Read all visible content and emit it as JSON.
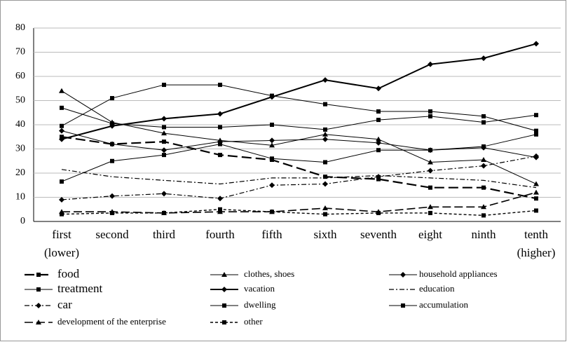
{
  "chart_data": {
    "type": "line",
    "categories": [
      "first\n(lower)",
      "second",
      "third",
      "fourth",
      "fifth",
      "sixth",
      "seventh",
      "eight",
      "ninth",
      "tenth\n(higher)"
    ],
    "ylim": [
      0,
      80
    ],
    "yticks": [
      0,
      10,
      20,
      30,
      40,
      50,
      60,
      70,
      80
    ],
    "grid": true,
    "series": [
      {
        "name": "food",
        "color": "#000000",
        "marker": "square",
        "style": "longdash-thick",
        "values": [
          35,
          32,
          33,
          27.5,
          25.5,
          18.5,
          17.5,
          14,
          14,
          9.5
        ]
      },
      {
        "name": "clothes, shoes",
        "color": "#000000",
        "marker": "triangle",
        "style": "solid",
        "values": [
          54,
          41,
          36.5,
          33.5,
          31.5,
          36,
          34,
          24.5,
          25.5,
          15.5
        ]
      },
      {
        "name": "household appliances",
        "color": "#000000",
        "marker": "diamond",
        "style": "solid",
        "values": [
          37.5,
          32,
          29.5,
          33,
          33.5,
          34,
          32.5,
          29.5,
          30.5,
          26.5
        ]
      },
      {
        "name": "treatment",
        "color": "#000000",
        "marker": "square",
        "style": "solid",
        "values": [
          47,
          40.5,
          39,
          39,
          40,
          38,
          42,
          43.5,
          41,
          44
        ]
      },
      {
        "name": "vacation",
        "color": "#000000",
        "marker": "diamond",
        "style": "solid-thick",
        "values": [
          34,
          39.5,
          42.5,
          44.5,
          51.5,
          58.5,
          55,
          65,
          67.5,
          73.5
        ]
      },
      {
        "name": "education",
        "color": "#000000",
        "marker": "none",
        "style": "dashdot",
        "values": [
          21.5,
          18.5,
          17,
          15.5,
          18,
          18,
          19,
          18,
          17,
          14
        ]
      },
      {
        "name": "car",
        "color": "#000000",
        "marker": "diamond",
        "style": "dashdot",
        "values": [
          9,
          10.5,
          11.5,
          9.5,
          15,
          15.5,
          18.5,
          21,
          23,
          27
        ]
      },
      {
        "name": "dwelling",
        "color": "#000000",
        "marker": "square",
        "style": "solid",
        "values": [
          16.5,
          25,
          27.5,
          32,
          26,
          24.5,
          29.5,
          29.5,
          31,
          36
        ]
      },
      {
        "name": "accumulation",
        "color": "#000000",
        "marker": "square",
        "style": "solid",
        "values": [
          39.5,
          51,
          56.5,
          56.5,
          52,
          48.5,
          45.5,
          45.5,
          43.5,
          37.5
        ]
      },
      {
        "name": "development of the enterprise",
        "color": "#000000",
        "marker": "triangle",
        "style": "longdash",
        "values": [
          4,
          4,
          3.5,
          4,
          4,
          5.5,
          4,
          6,
          6,
          12
        ]
      },
      {
        "name": "other",
        "color": "#000000",
        "marker": "square",
        "style": "dashed",
        "values": [
          3,
          3.5,
          3.5,
          5,
          4,
          3,
          3.5,
          3.5,
          2.5,
          4.5
        ]
      }
    ]
  }
}
